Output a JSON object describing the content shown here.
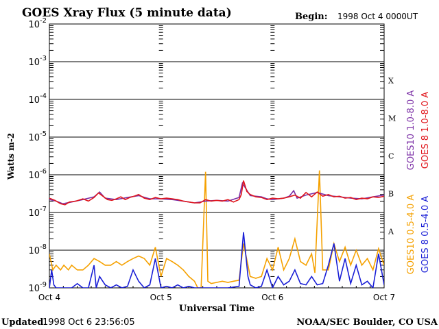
{
  "chart_data": {
    "type": "line",
    "title": "GOES Xray Flux (5 minute data)",
    "begin_label": "Begin:",
    "begin_value": "1998 Oct 4 0000UT",
    "xlabel": "Universal Time",
    "ylabel": "Watts m-2",
    "y_scale": "log",
    "ylim": [
      1e-09,
      0.01
    ],
    "y_ticks": [
      {
        "base": "10",
        "exp": "-2",
        "value": 0.01
      },
      {
        "base": "10",
        "exp": "-3",
        "value": 0.001
      },
      {
        "base": "10",
        "exp": "-4",
        "value": 0.0001
      },
      {
        "base": "10",
        "exp": "-5",
        "value": 1e-05
      },
      {
        "base": "10",
        "exp": "-6",
        "value": 1e-06
      },
      {
        "base": "10",
        "exp": "-7",
        "value": 1e-07
      },
      {
        "base": "10",
        "exp": "-8",
        "value": 1e-08
      },
      {
        "base": "10",
        "exp": "-9",
        "value": 1e-09
      }
    ],
    "xlim_days": [
      0,
      3
    ],
    "x_ticks": [
      {
        "label": "Oct 4",
        "day": 0
      },
      {
        "label": "Oct 5",
        "day": 1
      },
      {
        "label": "Oct 6",
        "day": 2
      },
      {
        "label": "Oct 7",
        "day": 3
      }
    ],
    "flare_classes": [
      {
        "label": "X",
        "value": 0.0001
      },
      {
        "label": "M",
        "value": 1e-05
      },
      {
        "label": "C",
        "value": 1e-06
      },
      {
        "label": "B",
        "value": 1e-07
      },
      {
        "label": "A",
        "value": 1e-08
      }
    ],
    "series": [
      {
        "name": "GOES10 1.0-8.0 A",
        "color": "#7b2fa6",
        "points": [
          [
            0,
            2.2e-07
          ],
          [
            0.06,
            2e-07
          ],
          [
            0.12,
            1.7e-07
          ],
          [
            0.2,
            1.9e-07
          ],
          [
            0.3,
            2.2e-07
          ],
          [
            0.4,
            2.6e-07
          ],
          [
            0.45,
            3.5e-07
          ],
          [
            0.5,
            2.4e-07
          ],
          [
            0.6,
            2.2e-07
          ],
          [
            0.7,
            2.5e-07
          ],
          [
            0.8,
            2.8e-07
          ],
          [
            0.9,
            2.3e-07
          ],
          [
            1.0,
            2.3e-07
          ],
          [
            1.1,
            2.2e-07
          ],
          [
            1.2,
            2e-07
          ],
          [
            1.3,
            1.8e-07
          ],
          [
            1.4,
            2e-07
          ],
          [
            1.5,
            2.1e-07
          ],
          [
            1.6,
            2e-07
          ],
          [
            1.7,
            2.5e-07
          ],
          [
            1.73,
            6e-07
          ],
          [
            1.8,
            2.8e-07
          ],
          [
            1.9,
            2.6e-07
          ],
          [
            1.95,
            2.3e-07
          ],
          [
            2.0,
            2.2e-07
          ],
          [
            2.1,
            2.4e-07
          ],
          [
            2.15,
            2.7e-07
          ],
          [
            2.19,
            3.8e-07
          ],
          [
            2.22,
            2.4e-07
          ],
          [
            2.3,
            2.9e-07
          ],
          [
            2.4,
            3.4e-07
          ],
          [
            2.5,
            2.8e-07
          ],
          [
            2.6,
            2.6e-07
          ],
          [
            2.7,
            2.4e-07
          ],
          [
            2.8,
            2.3e-07
          ],
          [
            2.9,
            2.6e-07
          ],
          [
            3.0,
            2.9e-07
          ]
        ]
      },
      {
        "name": "GOES 8 1.0-8.0 A",
        "color": "#e0161c",
        "points": [
          [
            0,
            2.4e-07
          ],
          [
            0.05,
            2.1e-07
          ],
          [
            0.1,
            1.7e-07
          ],
          [
            0.14,
            1.6e-07
          ],
          [
            0.18,
            1.9e-07
          ],
          [
            0.24,
            2e-07
          ],
          [
            0.3,
            2.3e-07
          ],
          [
            0.35,
            2e-07
          ],
          [
            0.4,
            2.5e-07
          ],
          [
            0.44,
            3.3e-07
          ],
          [
            0.48,
            2.7e-07
          ],
          [
            0.52,
            2.2e-07
          ],
          [
            0.56,
            2.1e-07
          ],
          [
            0.6,
            2.3e-07
          ],
          [
            0.64,
            2.6e-07
          ],
          [
            0.68,
            2.2e-07
          ],
          [
            0.72,
            2.5e-07
          ],
          [
            0.76,
            2.7e-07
          ],
          [
            0.8,
            3e-07
          ],
          [
            0.85,
            2.4e-07
          ],
          [
            0.9,
            2.2e-07
          ],
          [
            0.95,
            2.5e-07
          ],
          [
            1.0,
            2.3e-07
          ],
          [
            1.05,
            2.4e-07
          ],
          [
            1.1,
            2.3e-07
          ],
          [
            1.15,
            2.2e-07
          ],
          [
            1.2,
            2e-07
          ],
          [
            1.25,
            1.9e-07
          ],
          [
            1.3,
            1.8e-07
          ],
          [
            1.35,
            1.8e-07
          ],
          [
            1.4,
            2.2e-07
          ],
          [
            1.45,
            2e-07
          ],
          [
            1.5,
            2.1e-07
          ],
          [
            1.55,
            2e-07
          ],
          [
            1.6,
            2.2e-07
          ],
          [
            1.65,
            1.9e-07
          ],
          [
            1.7,
            2.2e-07
          ],
          [
            1.72,
            3e-07
          ],
          [
            1.74,
            7e-07
          ],
          [
            1.77,
            3.6e-07
          ],
          [
            1.8,
            3e-07
          ],
          [
            1.85,
            2.6e-07
          ],
          [
            1.9,
            2.5e-07
          ],
          [
            1.95,
            2.2e-07
          ],
          [
            2.0,
            2.4e-07
          ],
          [
            2.05,
            2.3e-07
          ],
          [
            2.1,
            2.4e-07
          ],
          [
            2.15,
            2.6e-07
          ],
          [
            2.2,
            2.9e-07
          ],
          [
            2.25,
            2.4e-07
          ],
          [
            2.3,
            3.4e-07
          ],
          [
            2.35,
            2.6e-07
          ],
          [
            2.4,
            3.5e-07
          ],
          [
            2.45,
            2.7e-07
          ],
          [
            2.5,
            3e-07
          ],
          [
            2.55,
            2.6e-07
          ],
          [
            2.6,
            2.7e-07
          ],
          [
            2.65,
            2.4e-07
          ],
          [
            2.7,
            2.5e-07
          ],
          [
            2.75,
            2.2e-07
          ],
          [
            2.8,
            2.4e-07
          ],
          [
            2.85,
            2.3e-07
          ],
          [
            2.9,
            2.6e-07
          ],
          [
            2.95,
            2.5e-07
          ],
          [
            3.0,
            2.7e-07
          ]
        ]
      },
      {
        "name": "GOES10 0.5-4.0 A",
        "color": "#f5a100",
        "points": [
          [
            0,
            8e-09
          ],
          [
            0.03,
            3e-09
          ],
          [
            0.06,
            4e-09
          ],
          [
            0.1,
            3e-09
          ],
          [
            0.13,
            4e-09
          ],
          [
            0.17,
            3e-09
          ],
          [
            0.2,
            4e-09
          ],
          [
            0.25,
            3e-09
          ],
          [
            0.3,
            3e-09
          ],
          [
            0.35,
            4e-09
          ],
          [
            0.4,
            6e-09
          ],
          [
            0.45,
            5e-09
          ],
          [
            0.5,
            4e-09
          ],
          [
            0.55,
            4e-09
          ],
          [
            0.6,
            5e-09
          ],
          [
            0.65,
            4e-09
          ],
          [
            0.7,
            5e-09
          ],
          [
            0.75,
            6e-09
          ],
          [
            0.8,
            7e-09
          ],
          [
            0.85,
            6e-09
          ],
          [
            0.9,
            4e-09
          ],
          [
            0.95,
            1.2e-08
          ],
          [
            1.0,
            2e-09
          ],
          [
            1.05,
            6e-09
          ],
          [
            1.1,
            5e-09
          ],
          [
            1.15,
            4e-09
          ],
          [
            1.2,
            3e-09
          ],
          [
            1.25,
            2e-09
          ],
          [
            1.3,
            1.5e-09
          ],
          [
            1.33,
            1e-09
          ],
          [
            1.36,
            1e-09
          ],
          [
            1.4,
            1.2e-06
          ],
          [
            1.42,
            1.5e-09
          ],
          [
            1.45,
            1.3e-09
          ],
          [
            1.5,
            1.4e-09
          ],
          [
            1.55,
            1.5e-09
          ],
          [
            1.6,
            1.4e-09
          ],
          [
            1.65,
            1.5e-09
          ],
          [
            1.7,
            1.6e-09
          ],
          [
            1.74,
            1.5e-08
          ],
          [
            1.78,
            4e-09
          ],
          [
            1.8,
            2e-09
          ],
          [
            1.85,
            1.8e-09
          ],
          [
            1.9,
            2e-09
          ],
          [
            1.95,
            6e-09
          ],
          [
            2.0,
            3e-09
          ],
          [
            2.05,
            1.2e-08
          ],
          [
            2.1,
            3e-09
          ],
          [
            2.15,
            6e-09
          ],
          [
            2.2,
            2e-08
          ],
          [
            2.25,
            5e-09
          ],
          [
            2.3,
            4e-09
          ],
          [
            2.35,
            8e-09
          ],
          [
            2.38,
            2.5e-09
          ],
          [
            2.42,
            1.3e-06
          ],
          [
            2.45,
            3e-09
          ],
          [
            2.5,
            3e-09
          ],
          [
            2.55,
            1.5e-08
          ],
          [
            2.6,
            5e-09
          ],
          [
            2.65,
            1.2e-08
          ],
          [
            2.7,
            4e-09
          ],
          [
            2.75,
            1e-08
          ],
          [
            2.8,
            4e-09
          ],
          [
            2.85,
            6e-09
          ],
          [
            2.9,
            3e-09
          ],
          [
            2.95,
            1.1e-08
          ],
          [
            3.0,
            4e-09
          ]
        ]
      },
      {
        "name": "GOES 8 0.5-4.0 A",
        "color": "#1a1fd6",
        "points": [
          [
            0,
            1e-09
          ],
          [
            0.02,
            3e-09
          ],
          [
            0.04,
            1.2e-09
          ],
          [
            0.06,
            1e-09
          ],
          [
            0.1,
            1e-09
          ],
          [
            0.15,
            1e-09
          ],
          [
            0.2,
            1e-09
          ],
          [
            0.25,
            1.3e-09
          ],
          [
            0.3,
            1e-09
          ],
          [
            0.35,
            1e-09
          ],
          [
            0.4,
            4e-09
          ],
          [
            0.42,
            1e-09
          ],
          [
            0.45,
            2e-09
          ],
          [
            0.5,
            1.2e-09
          ],
          [
            0.55,
            1e-09
          ],
          [
            0.6,
            1.2e-09
          ],
          [
            0.65,
            1e-09
          ],
          [
            0.7,
            1.1e-09
          ],
          [
            0.75,
            3e-09
          ],
          [
            0.8,
            1.5e-09
          ],
          [
            0.85,
            1e-09
          ],
          [
            0.9,
            1.2e-09
          ],
          [
            0.95,
            6e-09
          ],
          [
            1.0,
            1e-09
          ],
          [
            1.05,
            1.1e-09
          ],
          [
            1.1,
            1e-09
          ],
          [
            1.15,
            1.2e-09
          ],
          [
            1.2,
            1e-09
          ],
          [
            1.25,
            1.1e-09
          ],
          [
            1.3,
            1e-09
          ],
          [
            1.35,
            1e-09
          ],
          [
            1.4,
            1e-09
          ],
          [
            1.5,
            1e-09
          ],
          [
            1.6,
            1e-09
          ],
          [
            1.7,
            1.1e-09
          ],
          [
            1.74,
            3e-08
          ],
          [
            1.78,
            2e-09
          ],
          [
            1.8,
            1.2e-09
          ],
          [
            1.85,
            1e-09
          ],
          [
            1.9,
            1.1e-09
          ],
          [
            1.95,
            3e-09
          ],
          [
            2.0,
            1e-09
          ],
          [
            2.05,
            2e-09
          ],
          [
            2.1,
            1.2e-09
          ],
          [
            2.15,
            1.5e-09
          ],
          [
            2.2,
            3e-09
          ],
          [
            2.25,
            1.3e-09
          ],
          [
            2.3,
            1.2e-09
          ],
          [
            2.35,
            2e-09
          ],
          [
            2.4,
            1.2e-09
          ],
          [
            2.45,
            1.3e-09
          ],
          [
            2.5,
            4e-09
          ],
          [
            2.55,
            1.5e-08
          ],
          [
            2.6,
            1.5e-09
          ],
          [
            2.65,
            6e-09
          ],
          [
            2.7,
            1.3e-09
          ],
          [
            2.75,
            4e-09
          ],
          [
            2.8,
            1.2e-09
          ],
          [
            2.85,
            1.5e-09
          ],
          [
            2.9,
            1e-09
          ],
          [
            2.95,
            8e-09
          ],
          [
            3.0,
            1.2e-09
          ]
        ]
      }
    ],
    "grid": "horizontal decades"
  },
  "footer": {
    "updated_label": "Updated",
    "updated_value": "1998 Oct  6 23:56:05",
    "source": "NOAA/SEC Boulder, CO USA"
  }
}
